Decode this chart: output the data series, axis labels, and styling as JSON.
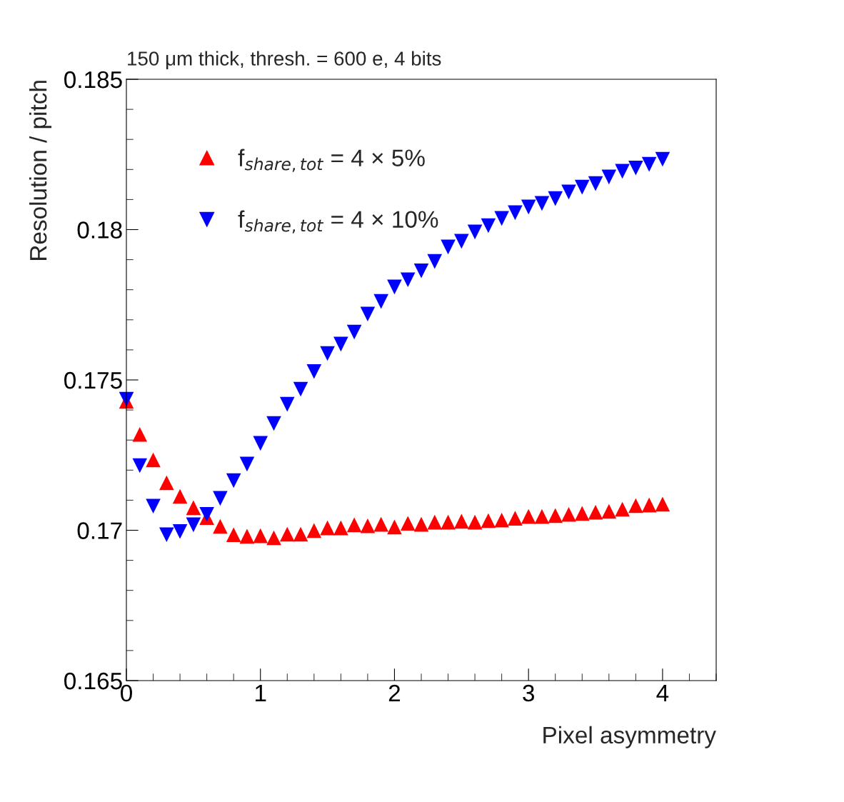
{
  "chart_data": {
    "type": "scatter",
    "title": "150 μm thick, thresh. = 600 e, 4 bits",
    "xlabel": "Pixel asymmetry",
    "ylabel": "Resolution / pitch",
    "xlim": [
      0,
      4.4
    ],
    "xticks": [
      0,
      1,
      2,
      3,
      4
    ],
    "ylim": [
      0.165,
      0.185
    ],
    "yticks": [
      0.165,
      0.17,
      0.175,
      0.18,
      0.185
    ],
    "x": [
      0,
      0.1,
      0.2,
      0.3,
      0.4,
      0.5,
      0.6,
      0.7,
      0.8,
      0.9,
      1.0,
      1.1,
      1.2,
      1.3,
      1.4,
      1.5,
      1.6,
      1.7,
      1.8,
      1.9,
      2.0,
      2.1,
      2.2,
      2.3,
      2.4,
      2.5,
      2.6,
      2.7,
      2.8,
      2.9,
      3.0,
      3.1,
      3.2,
      3.3,
      3.4,
      3.5,
      3.6,
      3.7,
      3.8,
      3.9,
      4.0
    ],
    "legend": "top left",
    "grid": false,
    "series": [
      {
        "name": "f$_{share,tot}$ = 4 × 5%",
        "color": "#ff0000",
        "marker": "triangle",
        "values": [
          0.17429,
          0.17319,
          0.17234,
          0.17158,
          0.17113,
          0.17075,
          0.17042,
          0.17013,
          0.16985,
          0.1698,
          0.16982,
          0.16975,
          0.16987,
          0.16987,
          0.16999,
          0.17008,
          0.17008,
          0.17018,
          0.17015,
          0.1702,
          0.17011,
          0.17023,
          0.1702,
          0.17027,
          0.17027,
          0.1703,
          0.17027,
          0.17032,
          0.17034,
          0.1704,
          0.17046,
          0.17046,
          0.17049,
          0.17053,
          0.17056,
          0.1706,
          0.17063,
          0.1707,
          0.17082,
          0.17084,
          0.17087
        ]
      },
      {
        "name": "f$_{share,tot}$ = 4 × 10%",
        "color": "#0000ff",
        "marker": "triangle_down",
        "values": [
          0.17436,
          0.17215,
          0.1708,
          0.16985,
          0.16996,
          0.17018,
          0.17053,
          0.17106,
          0.17165,
          0.1722,
          0.17289,
          0.17355,
          0.17419,
          0.17469,
          0.17528,
          0.17588,
          0.17619,
          0.17659,
          0.17719,
          0.17761,
          0.17809,
          0.17833,
          0.17863,
          0.17894,
          0.17942,
          0.17961,
          0.17992,
          0.18013,
          0.18037,
          0.18056,
          0.18075,
          0.18087,
          0.18103,
          0.18125,
          0.18141,
          0.18153,
          0.18175,
          0.18194,
          0.18205,
          0.18217,
          0.18234
        ]
      }
    ]
  }
}
